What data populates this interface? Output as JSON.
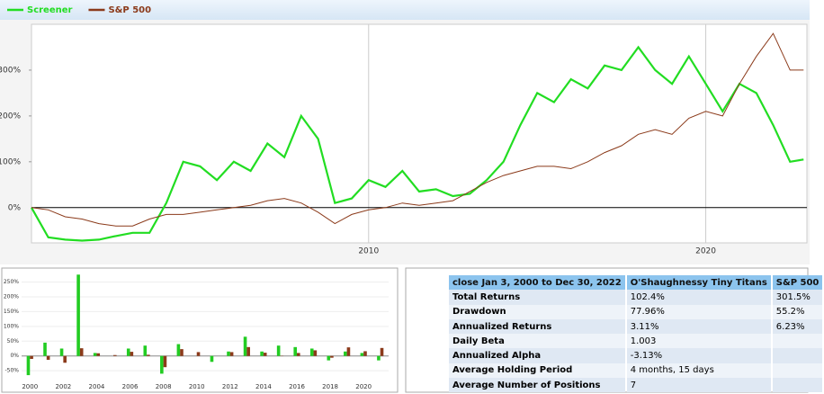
{
  "chart_data": [
    {
      "type": "line",
      "x": [
        2000,
        2000.5,
        2001,
        2001.5,
        2002,
        2002.5,
        2003,
        2003.5,
        2004,
        2004.5,
        2005,
        2005.5,
        2006,
        2006.5,
        2007,
        2007.5,
        2008,
        2008.5,
        2009,
        2009.5,
        2010,
        2010.5,
        2011,
        2011.5,
        2012,
        2012.5,
        2013,
        2013.5,
        2014,
        2014.5,
        2015,
        2015.5,
        2016,
        2016.5,
        2017,
        2017.5,
        2018,
        2018.5,
        2019,
        2019.5,
        2020,
        2020.5,
        2021,
        2021.5,
        2022,
        2022.5,
        2022.9
      ],
      "series": [
        {
          "name": "Screener",
          "color": "#22dd22",
          "values": [
            0,
            -65,
            -70,
            -72,
            -70,
            -62,
            -55,
            -55,
            10,
            100,
            90,
            60,
            100,
            80,
            140,
            110,
            200,
            150,
            10,
            20,
            60,
            45,
            80,
            35,
            40,
            25,
            30,
            60,
            100,
            180,
            250,
            230,
            280,
            260,
            310,
            300,
            350,
            300,
            270,
            330,
            270,
            210,
            270,
            250,
            180,
            100,
            105
          ]
        },
        {
          "name": "S&P 500",
          "color": "#8b3a1a",
          "values": [
            0,
            -5,
            -20,
            -25,
            -35,
            -40,
            -40,
            -25,
            -15,
            -15,
            -10,
            -5,
            0,
            5,
            15,
            20,
            10,
            -10,
            -35,
            -15,
            -5,
            0,
            10,
            5,
            10,
            15,
            35,
            55,
            70,
            80,
            90,
            90,
            85,
            100,
            120,
            135,
            160,
            170,
            160,
            195,
            210,
            200,
            270,
            330,
            380,
            300,
            300
          ]
        }
      ],
      "xlim": [
        2000,
        2023
      ],
      "xticks": [
        2010,
        2020
      ],
      "ylim": [
        -77,
        400
      ],
      "yticks": [
        {
          "value": 0,
          "label": "0%"
        },
        {
          "value": 100,
          "label": "100%"
        },
        {
          "value": 200,
          "label": "200%"
        },
        {
          "value": 300,
          "label": "300%"
        }
      ]
    },
    {
      "type": "bar",
      "categories": [
        "2000",
        null,
        "2002",
        null,
        "2004",
        null,
        "2006",
        null,
        "2008",
        null,
        "2010",
        null,
        "2012",
        null,
        "2014",
        null,
        "2016",
        null,
        "2018",
        null,
        "2020",
        null
      ],
      "series": [
        {
          "name": "Screener",
          "color": "#22cc22",
          "values": [
            -65,
            45,
            25,
            275,
            10,
            0,
            25,
            35,
            -60,
            40,
            0,
            -20,
            15,
            65,
            15,
            35,
            30,
            25,
            -15,
            15,
            10,
            -15
          ]
        },
        {
          "name": "S&P 500",
          "color": "#8b3a1a",
          "values": [
            -10,
            -13,
            -23,
            26,
            9,
            3,
            14,
            4,
            -38,
            23,
            13,
            0,
            13,
            30,
            11,
            -1,
            10,
            19,
            -6,
            29,
            16,
            27
          ]
        }
      ],
      "ylim": [
        -80,
        285
      ],
      "yticks": [
        {
          "value": -50,
          "label": "-50%"
        },
        {
          "value": 0,
          "label": "0%"
        },
        {
          "value": 50,
          "label": "50%"
        },
        {
          "value": 100,
          "label": "100%"
        },
        {
          "value": 150,
          "label": "150%"
        },
        {
          "value": 200,
          "label": "200%"
        },
        {
          "value": 250,
          "label": "250%"
        }
      ]
    }
  ],
  "table": {
    "header": [
      "close Jan 3, 2000 to Dec 30, 2022",
      "O'Shaughnessy Tiny Titans",
      "S&P 500"
    ],
    "rows": [
      [
        "Total Returns",
        "102.4%",
        "301.5%"
      ],
      [
        "Drawdown",
        "77.96%",
        "55.2%"
      ],
      [
        "Annualized Returns",
        "3.11%",
        "6.23%"
      ],
      [
        "Daily Beta",
        "1.003"
      ],
      [
        "Annualized Alpha",
        "-3.13%"
      ],
      [
        "Average Holding Period",
        "4 months, 15 days"
      ],
      [
        "Average Number of Positions",
        "7"
      ]
    ]
  }
}
